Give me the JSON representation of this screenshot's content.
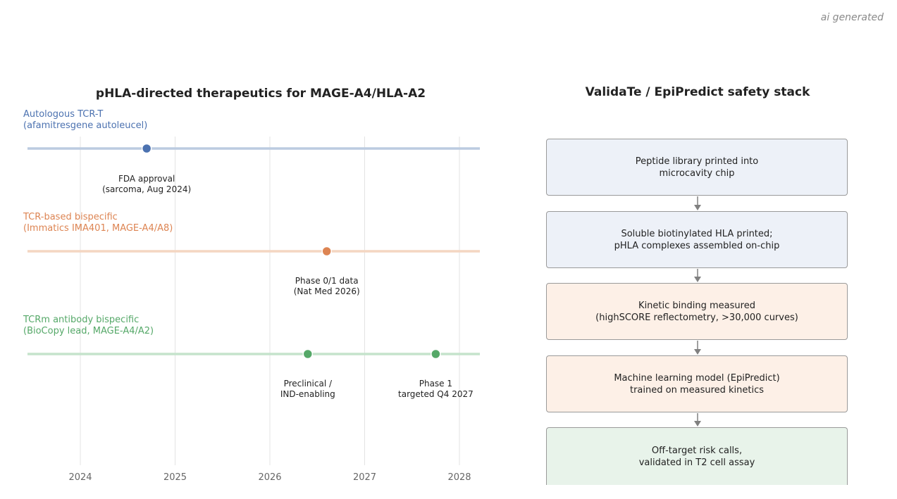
{
  "watermark": "ai generated",
  "left_panel": {
    "title": "pHLA-directed therapeutics for MAGE-A4/HLA-A2",
    "years": [
      "2024",
      "2025",
      "2026",
      "2027",
      "2028"
    ],
    "tracks": [
      {
        "label_line1": "Autologous TCR-T",
        "label_line2": "(afamitresgene autoleucel)",
        "color": "#4c72b0",
        "line_color": "#bccbe0",
        "milestones": [
          {
            "year": 2024.7,
            "line1": "FDA approval",
            "line2": "(sarcoma, Aug 2024)"
          }
        ]
      },
      {
        "label_line1": "TCR-based bispecific",
        "label_line2": "(Immatics IMA401, MAGE-A4/A8)",
        "color": "#dd8452",
        "line_color": "#f4d6c2",
        "milestones": [
          {
            "year": 2026.6,
            "line1": "Phase 0/1 data",
            "line2": "(Nat Med 2026)"
          }
        ]
      },
      {
        "label_line1": "TCRm antibody bispecific",
        "label_line2": "(BioCopy lead, MAGE-A4/A2)",
        "color": "#55a868",
        "line_color": "#c5e3cc",
        "milestones": [
          {
            "year": 2026.4,
            "line1": "Preclinical /",
            "line2": "IND-enabling"
          },
          {
            "year": 2027.75,
            "line1": "Phase 1",
            "line2": "targeted Q4 2027"
          }
        ]
      }
    ]
  },
  "right_panel": {
    "title": "ValidaTe / EpiPredict safety stack",
    "steps": [
      {
        "line1": "Peptide library printed into",
        "line2": "microcavity chip",
        "fill": "#edf1f8"
      },
      {
        "line1": "Soluble biotinylated HLA printed;",
        "line2": "pHLA complexes assembled on-chip",
        "fill": "#edf1f8"
      },
      {
        "line1": "Kinetic binding measured",
        "line2": "(highSCORE reflectometry, >30,000 curves)",
        "fill": "#fdf0e7"
      },
      {
        "line1": "Machine learning model (EpiPredict)",
        "line2": "trained on measured kinetics",
        "fill": "#fdf0e7"
      },
      {
        "line1": "Off-target risk calls,",
        "line2": "validated in T2 cell assay",
        "fill": "#e8f3ea"
      }
    ]
  }
}
